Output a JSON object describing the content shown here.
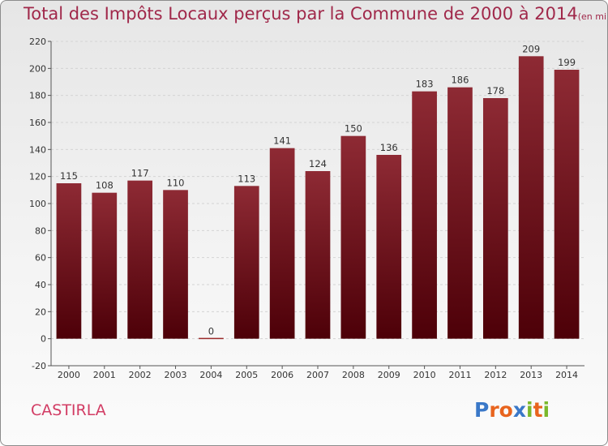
{
  "title": "Total des Impôts Locaux perçus par la Commune de 2000 à 2014",
  "title_unit": "(en milliers d'€)",
  "commune": "CASTIRLA",
  "logo": {
    "text": "Proxiti",
    "letter_colors": [
      "#3a78c8",
      "#e8641e",
      "#e8641e",
      "#3a78c8",
      "#7ab82c",
      "#e8641e",
      "#7ab82c"
    ]
  },
  "colors": {
    "bar_top": "#8e2a34",
    "bar_bottom": "#4d0008",
    "title": "#a0284a",
    "commune": "#d23c64",
    "zero_line": "#9a2a2a"
  },
  "chart_data": {
    "type": "bar",
    "title": "Total des Impôts Locaux perçus par la Commune de 2000 à 2014",
    "categories": [
      "2000",
      "2001",
      "2002",
      "2003",
      "2004",
      "2005",
      "2006",
      "2007",
      "2008",
      "2009",
      "2010",
      "2011",
      "2012",
      "2013",
      "2014"
    ],
    "values": [
      115,
      108,
      117,
      110,
      0,
      113,
      141,
      124,
      150,
      136,
      183,
      186,
      178,
      209,
      199
    ],
    "ylim": [
      -20,
      220
    ],
    "yticks": [
      -20,
      0,
      20,
      40,
      60,
      80,
      100,
      120,
      140,
      160,
      180,
      200,
      220
    ],
    "xlabel": "",
    "ylabel": "",
    "grid": true
  }
}
